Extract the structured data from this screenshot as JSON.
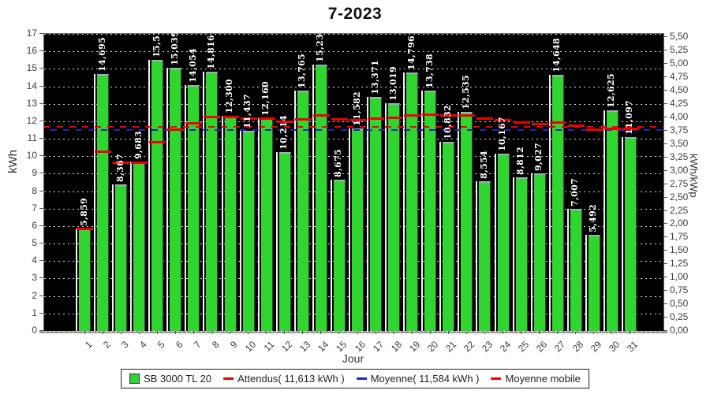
{
  "chart_data": {
    "type": "bar",
    "title": "7-2023",
    "xlabel": "Jour",
    "ylabel_left": "kWh",
    "ylabel_right": "kWh/kWp",
    "categories": [
      1,
      2,
      3,
      4,
      5,
      6,
      7,
      8,
      9,
      10,
      11,
      12,
      13,
      14,
      15,
      16,
      17,
      18,
      19,
      20,
      21,
      22,
      23,
      24,
      25,
      26,
      27,
      28,
      29,
      30,
      31
    ],
    "series": [
      {
        "name": "SB 3000 TL 20",
        "values": [
          5.859,
          14.695,
          8.367,
          9.683,
          15.515,
          15.039,
          14.054,
          14.816,
          12.3,
          11.437,
          12.16,
          10.214,
          13.765,
          15.23,
          8.675,
          11.582,
          13.371,
          13.019,
          14.796,
          13.738,
          10.832,
          12.535,
          8.554,
          10.167,
          8.812,
          9.027,
          14.648,
          7.007,
          5.492,
          12.625,
          11.097
        ],
        "value_labels": [
          "5,859",
          "14,695",
          "8,367",
          "9,683",
          "15,515",
          "15,039",
          "14,054",
          "14,816",
          "12,300",
          "11,437",
          "12,160",
          "10,214",
          "13,765",
          "15,230",
          "8,675",
          "11,582",
          "13,371",
          "13,019",
          "14,796",
          "13,738",
          "10,832",
          "12,535",
          "8,554",
          "10,167",
          "8,812",
          "9,027",
          "14,648",
          "7,007",
          "5,492",
          "12,625",
          "11,097"
        ]
      }
    ],
    "ylim_left": [
      0,
      17
    ],
    "ytick_step_left": 1,
    "ylim_right": [
      0,
      5.5
    ],
    "ytick_step_right": 0.25,
    "kwh_per_kwp": 3.056,
    "grid": true,
    "legend_position": "bottom",
    "reference_lines": {
      "attendus": {
        "label": "Attendus( 11,613 kWh )",
        "value": 11.613,
        "color": "#ee0000",
        "style": "dashed"
      },
      "moyenne": {
        "label": "Moyenne( 11,584 kWh )",
        "value": 11.584,
        "color": "#2222cc",
        "style": "dashed"
      },
      "moyenne_mobile": {
        "label": "Moyenne mobile",
        "color": "#ee0000",
        "type": "cumulative_mean"
      }
    }
  },
  "legend": {
    "items": [
      {
        "swatch": "square",
        "color": "#30d530",
        "label": "SB 3000 TL 20"
      },
      {
        "swatch": "dash",
        "color": "#ee0000",
        "label": "Attendus( 11,613 kWh )"
      },
      {
        "swatch": "dash",
        "color": "#2222cc",
        "label": "Moyenne( 11,584 kWh )"
      },
      {
        "swatch": "dash",
        "color": "#ee0000",
        "label": "Moyenne mobile"
      }
    ]
  },
  "colors": {
    "bar_fill": "#30d530",
    "bar_top_edge": "#9fb0b8",
    "bar_left_highlight": "#f2f2f2",
    "plot_background": "#000000",
    "gridline": "#ffffff",
    "axis_text": "#3c3c3c",
    "attendus_line": "#ee0000",
    "moyenne_line": "#2222cc",
    "moyenne_mobile_line": "#ee0000"
  }
}
